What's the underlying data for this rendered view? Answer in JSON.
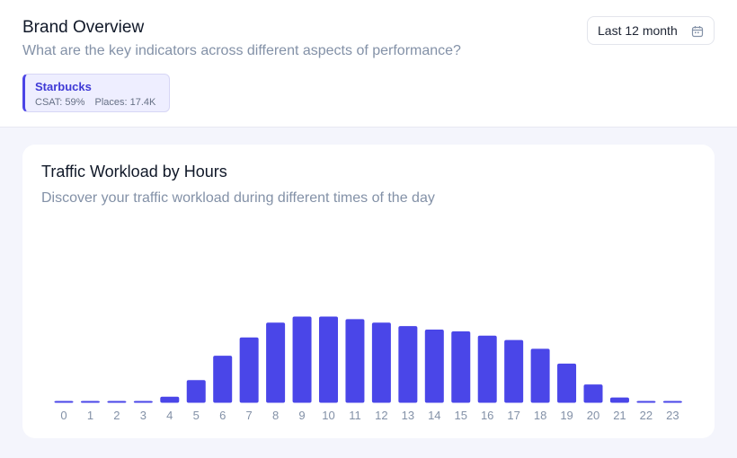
{
  "header": {
    "title": "Brand Overview",
    "subtitle": "What are the key indicators across different aspects of performance?"
  },
  "date_filter": {
    "label": "Last 12 month",
    "icon": "calendar-icon"
  },
  "brand": {
    "name": "Starbucks",
    "csat": "CSAT: 59%",
    "places": "Places: 17.4K"
  },
  "colors": {
    "accent": "#4b44e6",
    "bar": "#4a46e8",
    "muted": "#8391a7"
  },
  "card": {
    "title": "Traffic Workload by Hours",
    "subtitle": "Discover your traffic workload during different times of the day"
  },
  "chart_data": {
    "type": "bar",
    "title": "Traffic Workload by Hours",
    "xlabel": "",
    "ylabel": "",
    "categories": [
      "0",
      "1",
      "2",
      "3",
      "4",
      "5",
      "6",
      "7",
      "8",
      "9",
      "10",
      "11",
      "12",
      "13",
      "14",
      "15",
      "16",
      "17",
      "18",
      "19",
      "20",
      "21",
      "22",
      "23"
    ],
    "values": [
      1,
      1,
      1,
      1,
      7,
      26,
      54,
      75,
      92,
      99,
      99,
      96,
      92,
      88,
      84,
      82,
      77,
      72,
      62,
      45,
      21,
      6,
      2,
      2
    ],
    "ylim": [
      0,
      100
    ],
    "grid": false,
    "legend": "none"
  }
}
